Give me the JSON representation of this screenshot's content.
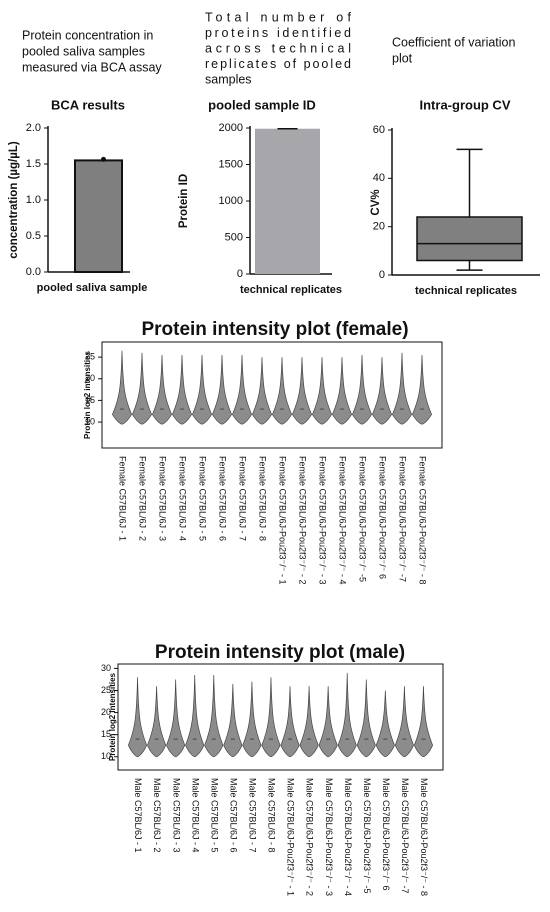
{
  "chart_data": [
    {
      "type": "bar",
      "caption": [
        "Protein concentration in",
        "pooled saliva samples",
        "measured via BCA assay"
      ],
      "title": "BCA results",
      "y_label": "concentration (µg/µL)",
      "categories": [
        "pooled saliva sample"
      ],
      "values": [
        1.55
      ],
      "color": "#7f7f7f",
      "ylim": [
        0,
        2
      ],
      "yticks": [
        {
          "value": 0,
          "label": "0.0"
        },
        {
          "value": 0.5,
          "label": "0.5"
        },
        {
          "value": 1,
          "label": "1.0"
        },
        {
          "value": 1.5,
          "label": "1.5"
        },
        {
          "value": 2,
          "label": "2.0"
        }
      ]
    },
    {
      "type": "bar",
      "caption": [
        "Total number of",
        "proteins identified",
        "across technical",
        "replicates of pooled",
        "samples"
      ],
      "title": "pooled sample ID",
      "y_label": "Protein ID",
      "categories": [
        "technical replicates"
      ],
      "values": [
        1990
      ],
      "color": "#a6a6ab",
      "ylim": [
        0,
        2000
      ],
      "yticks": [
        0,
        500,
        1000,
        1500,
        2000
      ]
    },
    {
      "type": "box",
      "caption": [
        "Coefficient of variation",
        "plot"
      ],
      "title": "Intra-group CV",
      "y_label": "CV%",
      "categories": [
        "technical replicates"
      ],
      "min": [
        2
      ],
      "q1": [
        6
      ],
      "median": [
        13
      ],
      "q3": [
        24
      ],
      "max": [
        52
      ],
      "color": "#808080",
      "ylim": [
        0,
        60
      ],
      "yticks": [
        0,
        20,
        40,
        60
      ]
    },
    {
      "type": "violin",
      "title": "Protein intensity plot (female)",
      "y_label": "Protein log2 intensities",
      "categories": [
        "Female C57BL/6J - 1",
        "Female C57BL/6J - 2",
        "Female C57BL/6J - 3",
        "Female C57BL/6J - 4",
        "Female C57BL/6J - 5",
        "Female C57BL/6J - 6",
        "Female C57BL/6J - 7",
        "Female C57BL/6J - 8",
        "Female C57BL/6J-Pou2f3⁻/⁻ - 1",
        "Female C57BL/6J-Pou2f3⁻/⁻ - 2",
        "Female C57BL/6J-Pou2f3⁻/⁻ - 3",
        "Female C57BL/6J-Pou2f3⁻/⁻ - 4",
        "Female C57BL/6J-Pou2f3⁻/⁻ -5",
        "Female C57BL/6J-Pou2f3⁻/⁻ 6",
        "Female C57BL/6J-Pou2f3⁻/⁻ -7",
        "Female C57BL/6J-Pou2f3⁻/⁻ - 8"
      ],
      "min": [
        9.5,
        9.5,
        9.5,
        9.5,
        9.5,
        9.5,
        9.5,
        9.5,
        9.5,
        9.5,
        9.5,
        9.5,
        9.5,
        9.5,
        9.5,
        9.5
      ],
      "median": [
        13,
        13,
        13,
        13,
        13,
        13,
        13,
        13,
        13,
        13,
        13,
        13,
        13,
        13,
        13,
        13
      ],
      "max": [
        26.5,
        26,
        25.5,
        25.5,
        25.5,
        25.5,
        25.5,
        25,
        25,
        25,
        25,
        25,
        25.5,
        25,
        26,
        25.5
      ],
      "color": "#8c8c8c",
      "ylim": [
        4,
        28.5
      ],
      "yticks": [
        10,
        15,
        20,
        25
      ]
    },
    {
      "type": "violin",
      "title": "Protein intensity plot (male)",
      "y_label": "Protein log2 intensities",
      "categories": [
        "Male C57BL/6J - 1",
        "Male C57BL/6J - 2",
        "Male C57BL/6J - 3",
        "Male C57BL/6J - 4",
        "Male C57BL/6J - 5",
        "Male C57BL/6J - 6",
        "Male C57BL/6J - 7",
        "Male C57BL/6J - 8",
        "Male C57BL/6J-Pou2f3⁻/⁻ - 1",
        "Male C57BL/6J-Pou2f3⁻/⁻ - 2",
        "Male C57BL/6J-Pou2f3⁻/⁻ - 3",
        "Male C57BL/6J-Pou2f3⁻/⁻ - 4",
        "Male C57BL/6J-Pou2f3⁻/⁻ -5",
        "Male C57BL/6J-Pou2f3⁻/⁻ 6",
        "Male C57BL/6J-Pou2f3⁻/⁻ -7",
        "Male C57BL/6J-Pou2f3⁻/⁻ - 8"
      ],
      "min": [
        10,
        10,
        10,
        10,
        10,
        10,
        10,
        10,
        10,
        10,
        10,
        10,
        10,
        10,
        10,
        10
      ],
      "median": [
        14,
        14,
        14,
        14,
        14,
        14,
        14,
        14,
        14,
        14,
        14,
        14,
        14,
        14,
        14,
        14
      ],
      "max": [
        28,
        26,
        27.5,
        28.5,
        28.5,
        26.5,
        27,
        28,
        26,
        26,
        26,
        29,
        27.5,
        25,
        26,
        26
      ],
      "color": "#8c8c8c",
      "ylim": [
        7,
        31
      ],
      "yticks": [
        10,
        15,
        20,
        25,
        30
      ]
    }
  ]
}
